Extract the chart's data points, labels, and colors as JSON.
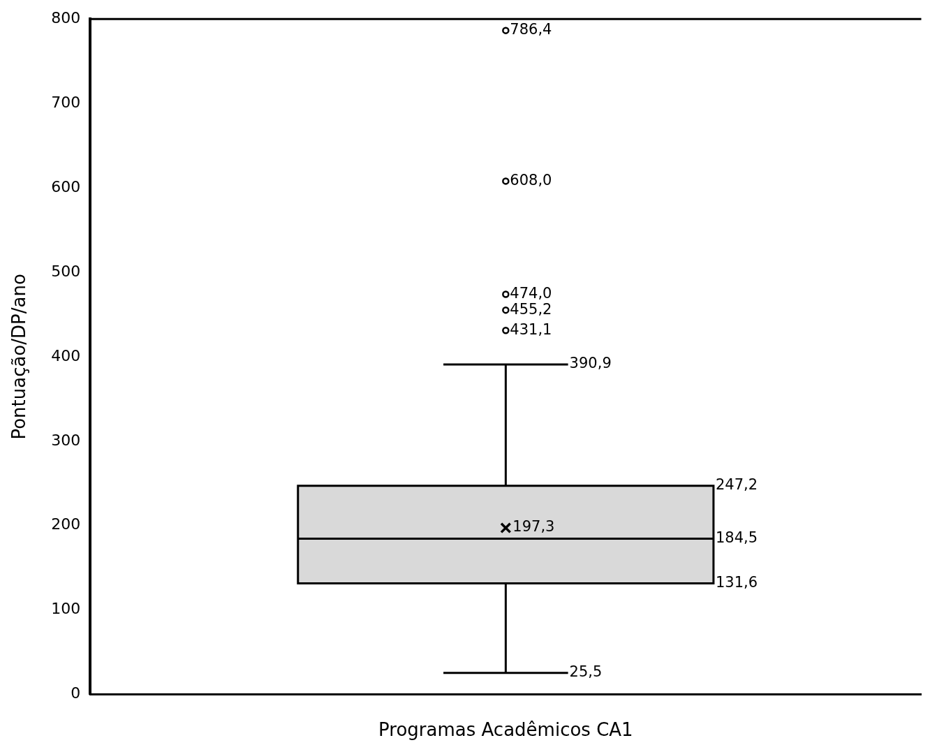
{
  "chart_data": {
    "type": "box",
    "xlabel": "Programas Acadêmicos CA1",
    "ylabel": "Pontuação/DP/ano",
    "categories": [
      null
    ],
    "boxes": [
      {
        "low": 25.5,
        "q1": 131.6,
        "median": 184.5,
        "q3": 247.2,
        "high": 390.9,
        "mean": 197.3,
        "outliers": [
          431.1,
          455.2,
          474.0,
          608.0,
          786.4
        ]
      }
    ],
    "color": "#d9d9d9",
    "ylim": [
      0,
      800
    ],
    "yticks": [
      0,
      100,
      200,
      300,
      400,
      500,
      600,
      700,
      800
    ],
    "marker": "circle",
    "data_labels": true,
    "annotations": [
      "786,4",
      "608,0",
      "474,0",
      "455,2",
      "431,1",
      "390,9",
      "247,2",
      "197,3",
      "184,5",
      "131,6",
      "25,5"
    ]
  }
}
